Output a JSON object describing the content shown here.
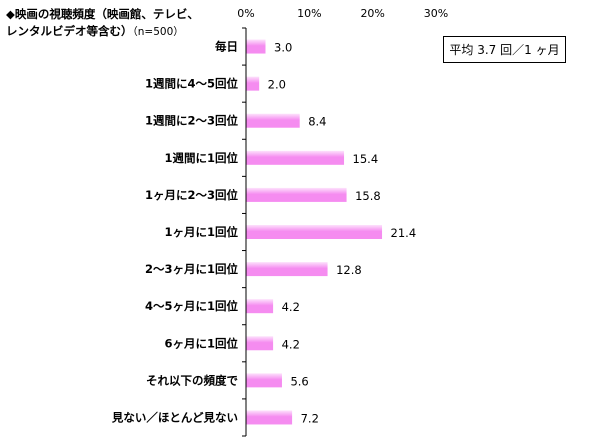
{
  "title": {
    "line1": "◆映画の視聴頻度（映画館、テレビ、",
    "line2": "レンタルビデオ等含む）",
    "n": "（n=500）"
  },
  "note": "平均 3.7 回／1 ヶ月",
  "colors": {
    "bar": "#f58cf0",
    "bar_light": "#fde2fc",
    "axis": "#000000"
  },
  "chart_data": {
    "type": "bar",
    "orientation": "horizontal",
    "categories": [
      "毎日",
      "1週間に4～5回位",
      "1週間に2～3回位",
      "1週間に1回位",
      "1ヶ月に2～3回位",
      "1ヶ月に1回位",
      "2～3ヶ月に1回位",
      "4～5ヶ月に1回位",
      "6ヶ月に1回位",
      "それ以下の頻度で",
      "見ない／ほとんど見ない"
    ],
    "values": [
      3.0,
      2.0,
      8.4,
      15.4,
      15.8,
      21.4,
      12.8,
      4.2,
      4.2,
      5.6,
      7.2
    ],
    "value_labels": [
      "3.0",
      "2.0",
      "8.4",
      "15.4",
      "15.8",
      "21.4",
      "12.8",
      "4.2",
      "4.2",
      "5.6",
      "7.2"
    ],
    "xlim": [
      0,
      30
    ],
    "ticks": [
      0,
      10,
      20,
      30
    ],
    "tick_labels": [
      "0%",
      "10%",
      "20%",
      "30%"
    ],
    "unit": "%",
    "grid": false
  }
}
